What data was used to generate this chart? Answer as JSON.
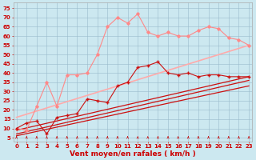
{
  "background_color": "#cce8f0",
  "grid_color": "#99bbcc",
  "x_ticks": [
    0,
    1,
    2,
    3,
    4,
    5,
    6,
    7,
    8,
    9,
    10,
    11,
    12,
    13,
    14,
    15,
    16,
    17,
    18,
    19,
    20,
    21,
    22,
    23
  ],
  "xlabel": "Vent moyen/en rafales ( km/h )",
  "ylabel_ticks": [
    5,
    10,
    15,
    20,
    25,
    30,
    35,
    40,
    45,
    50,
    55,
    60,
    65,
    70,
    75
  ],
  "ylim": [
    3,
    78
  ],
  "xlim": [
    -0.3,
    23.3
  ],
  "series": [
    {
      "name": "rafales_max_diamond",
      "color": "#ff8888",
      "linewidth": 0.8,
      "marker": "D",
      "markersize": 1.8,
      "zorder": 3,
      "data_x": [
        0,
        1,
        2,
        3,
        4,
        5,
        6,
        7,
        8,
        9,
        10,
        11,
        12,
        13,
        14,
        15,
        16,
        17,
        18,
        19,
        20,
        21,
        22,
        23
      ],
      "data_y": [
        10,
        9,
        22,
        35,
        22,
        39,
        39,
        40,
        50,
        65,
        70,
        67,
        72,
        62,
        60,
        62,
        60,
        60,
        63,
        65,
        64,
        59,
        58,
        55
      ]
    },
    {
      "name": "rafales_mean_linear",
      "color": "#ffaaaa",
      "linewidth": 1.2,
      "marker": null,
      "markersize": 0,
      "zorder": 2,
      "data_x": [
        0,
        23
      ],
      "data_y": [
        16,
        55
      ]
    },
    {
      "name": "vent_max_cross",
      "color": "#cc1111",
      "linewidth": 0.8,
      "marker": "+",
      "markersize": 3.0,
      "zorder": 4,
      "data_x": [
        0,
        1,
        2,
        3,
        4,
        5,
        6,
        7,
        8,
        9,
        10,
        11,
        12,
        13,
        14,
        15,
        16,
        17,
        18,
        19,
        20,
        21,
        22,
        23
      ],
      "data_y": [
        10,
        13,
        14,
        7,
        16,
        17,
        18,
        26,
        25,
        24,
        33,
        35,
        43,
        44,
        46,
        40,
        39,
        40,
        38,
        39,
        39,
        38,
        38,
        38
      ]
    },
    {
      "name": "vent_mean_line1",
      "color": "#cc1111",
      "linewidth": 0.9,
      "marker": null,
      "markersize": 0,
      "zorder": 2,
      "data_x": [
        0,
        23
      ],
      "data_y": [
        9,
        38
      ]
    },
    {
      "name": "vent_mean_line2",
      "color": "#cc1111",
      "linewidth": 0.9,
      "marker": null,
      "markersize": 0,
      "zorder": 2,
      "data_x": [
        0,
        23
      ],
      "data_y": [
        6,
        33
      ]
    },
    {
      "name": "vent_mean_line3",
      "color": "#cc1111",
      "linewidth": 0.9,
      "marker": null,
      "markersize": 0,
      "zorder": 2,
      "data_x": [
        0,
        23
      ],
      "data_y": [
        7,
        36
      ]
    }
  ],
  "tick_label_fontsize": 5.0,
  "xlabel_fontsize": 6.5,
  "axis_label_color": "#cc0000",
  "arrow_color": "#cc0000",
  "arrow_size": 4.0
}
